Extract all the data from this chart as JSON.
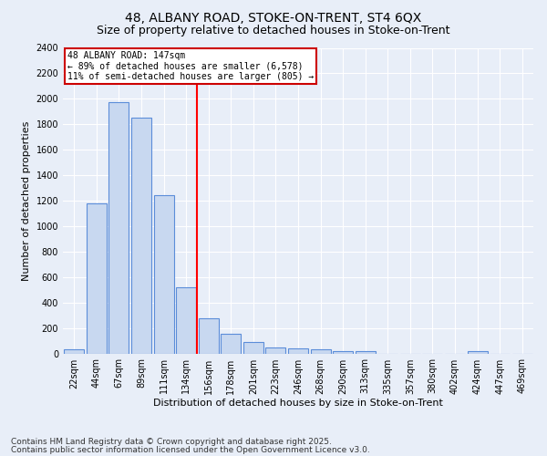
{
  "title_line1": "48, ALBANY ROAD, STOKE-ON-TRENT, ST4 6QX",
  "title_line2": "Size of property relative to detached houses in Stoke-on-Trent",
  "xlabel": "Distribution of detached houses by size in Stoke-on-Trent",
  "ylabel": "Number of detached properties",
  "categories": [
    "22sqm",
    "44sqm",
    "67sqm",
    "89sqm",
    "111sqm",
    "134sqm",
    "156sqm",
    "178sqm",
    "201sqm",
    "223sqm",
    "246sqm",
    "268sqm",
    "290sqm",
    "313sqm",
    "335sqm",
    "357sqm",
    "380sqm",
    "402sqm",
    "424sqm",
    "447sqm",
    "469sqm"
  ],
  "values": [
    30,
    1175,
    1975,
    1850,
    1245,
    520,
    275,
    155,
    90,
    50,
    40,
    30,
    20,
    15,
    0,
    0,
    0,
    0,
    20,
    0,
    0
  ],
  "bar_color": "#c8d8f0",
  "bar_edge_color": "#5b8dd9",
  "red_line_x": 5.5,
  "annotation_text": "48 ALBANY ROAD: 147sqm\n← 89% of detached houses are smaller (6,578)\n11% of semi-detached houses are larger (805) →",
  "annotation_box_color": "#ffffff",
  "annotation_box_edge_color": "#cc0000",
  "ylim": [
    0,
    2400
  ],
  "yticks": [
    0,
    200,
    400,
    600,
    800,
    1000,
    1200,
    1400,
    1600,
    1800,
    2000,
    2200,
    2400
  ],
  "footer_line1": "Contains HM Land Registry data © Crown copyright and database right 2025.",
  "footer_line2": "Contains public sector information licensed under the Open Government Licence v3.0.",
  "background_color": "#e8eef8",
  "plot_bg_color": "#e8eef8",
  "grid_color": "#ffffff",
  "title_fontsize": 10,
  "subtitle_fontsize": 9,
  "axis_label_fontsize": 8,
  "tick_fontsize": 7,
  "annotation_fontsize": 7,
  "footer_fontsize": 6.5
}
